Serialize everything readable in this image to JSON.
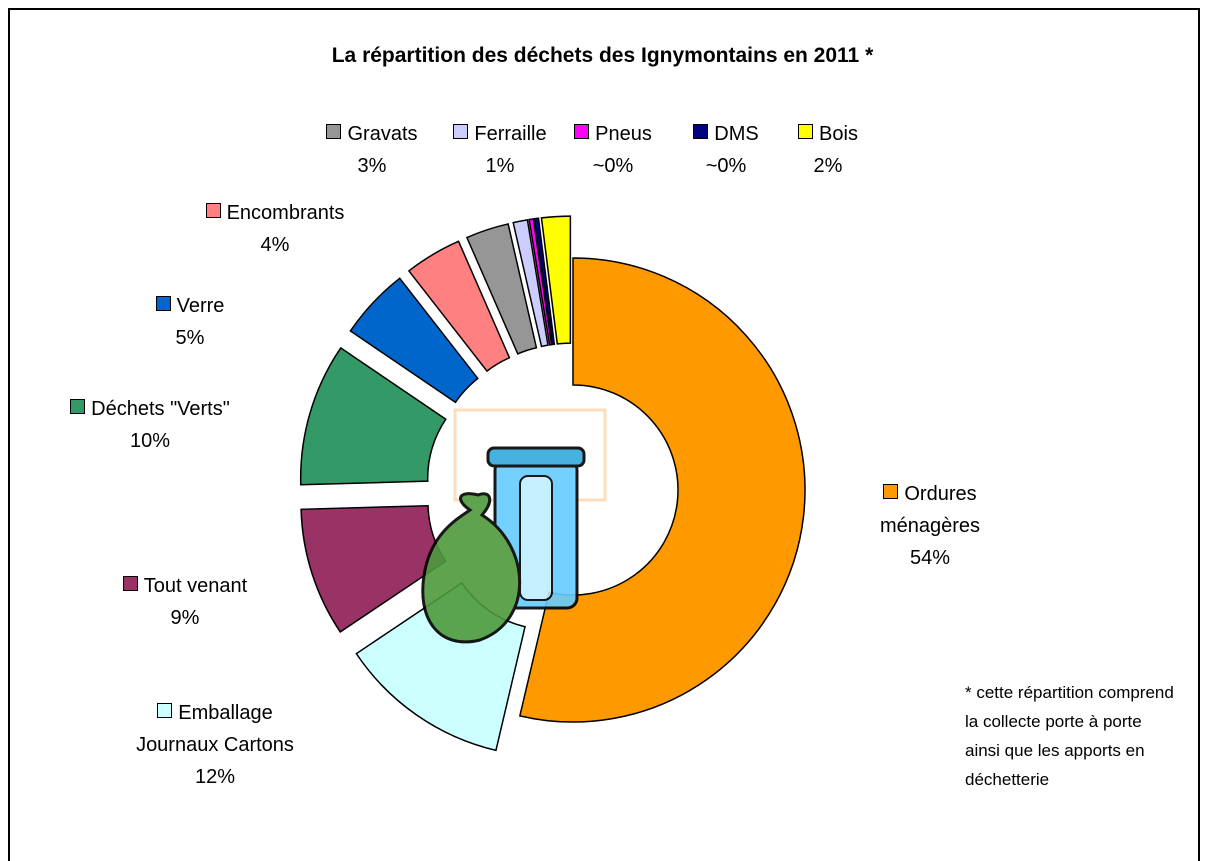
{
  "chart_data": {
    "type": "donut",
    "title": "La répartition des déchets des Ignymontains en 2011 *",
    "categories": [
      "Ordures ménagères",
      "Emballage Journaux Cartons",
      "Tout venant",
      "Déchets \"Verts\"",
      "Verre",
      "Encombrants",
      "Gravats",
      "Ferraille",
      "Pneus",
      "DMS",
      "Bois"
    ],
    "values": [
      54,
      12,
      9,
      10,
      5,
      4,
      3,
      1,
      0.3,
      0.3,
      2
    ],
    "value_labels": [
      "54%",
      "12%",
      "9%",
      "10%",
      "5%",
      "4%",
      "3%",
      "1%",
      "~0%",
      "~0%",
      "2%"
    ],
    "colors": [
      "#FF9900",
      "#CCFFFF",
      "#993366",
      "#339966",
      "#0066CC",
      "#FF8080",
      "#969696",
      "#CCCCFF",
      "#FF00FF",
      "#000080",
      "#FFFF00"
    ],
    "annotation": "* cette répartition comprend la collecte porte à porte ainsi que les apports en déchetterie"
  }
}
